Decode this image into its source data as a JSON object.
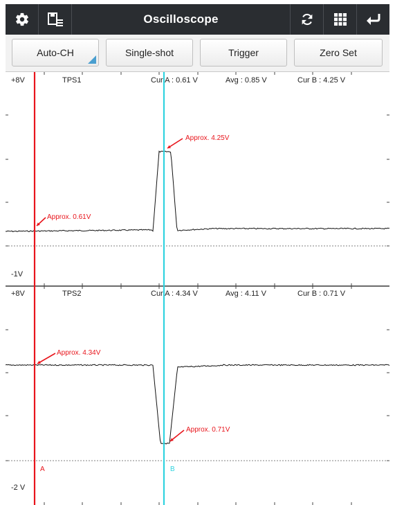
{
  "titlebar": {
    "title": "Oscilloscope",
    "left_icons": [
      "gear-icon",
      "save-list-icon"
    ],
    "right_icons": [
      "refresh-icon",
      "grid-icon",
      "back-icon"
    ]
  },
  "toolbar": {
    "auto_ch": "Auto-CH",
    "single_shot": "Single-shot",
    "trigger": "Trigger",
    "zero_set": "Zero Set"
  },
  "channels": [
    {
      "name": "TPS1",
      "y_top": "+8V",
      "y_bottom": "-1V",
      "cur_a": "Cur A : 0.61 V",
      "avg": "Avg : 0.85 V",
      "cur_b": "Cur B : 4.25 V",
      "ann_a": "Approx. 0.61V",
      "ann_b": "Approx. 4.25V"
    },
    {
      "name": "TPS2",
      "y_top": "+8V",
      "y_bottom": "-2 V",
      "cur_a": "Cur A : 4.34 V",
      "avg": "Avg : 4.11 V",
      "cur_b": "Cur B : 0.71 V",
      "ann_a": "Approx. 4.34V",
      "ann_b": "Approx. 0.71V"
    }
  ],
  "cursors": {
    "a_label": "A",
    "b_label": "B",
    "a_color": "#e8141b",
    "b_color": "#2fd3df"
  },
  "colors": {
    "annotation": "#e8141b",
    "trace": "#111111"
  }
}
